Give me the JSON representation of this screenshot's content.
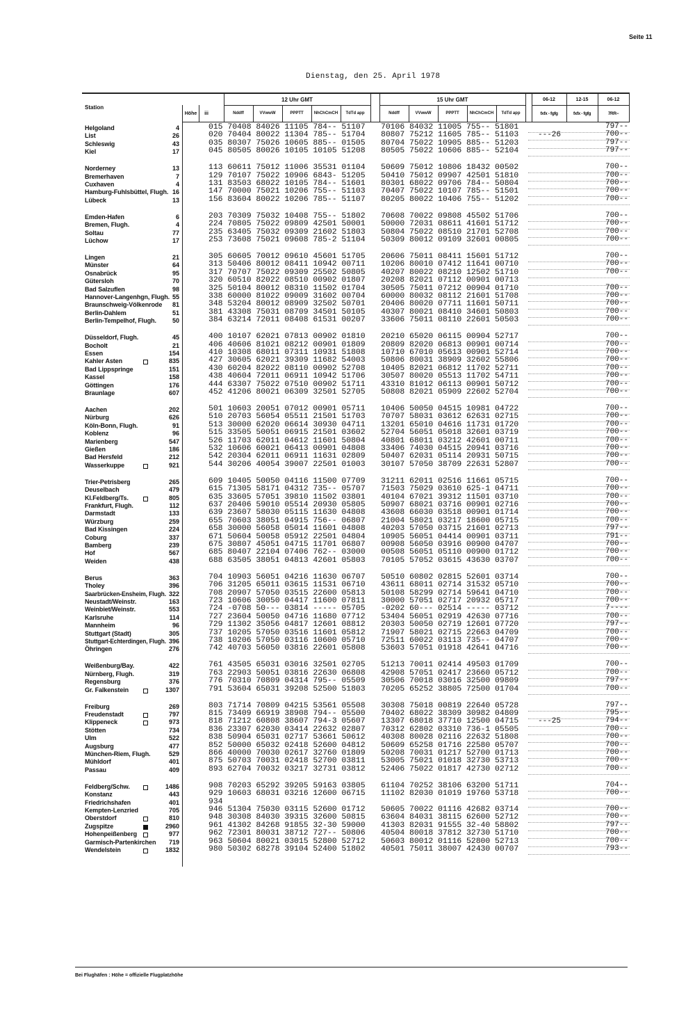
{
  "page_label": "Seite 11",
  "date_line": "Dienstag, den 25. April 1978",
  "header": {
    "station": "Station",
    "hoehe": "Höhe",
    "iii": "iii",
    "group_12": "12 Uhr GMT",
    "group_15": "15 Uhr GMT",
    "cols": [
      "Nddff",
      "VVwwW",
      "PPPTT",
      "NhChCmCH",
      "TdTd app"
    ],
    "right_top": [
      "06-12",
      "12-15",
      "06-12"
    ],
    "right_sub": [
      "fxfx - fgfg",
      "fxfx - fgfg",
      "7RR--"
    ]
  },
  "groups": [
    [
      [
        "Helgoland",
        "4",
        "",
        "015",
        "70408 84026 11105 784-- 51107",
        "70106 84032 11005 755-- 51801",
        "",
        "",
        "797--"
      ],
      [
        "List",
        "26",
        "",
        "020",
        "70404 80022 11304 785-- 51704",
        "80807 75212 11605 785-- 51103",
        "---26",
        "",
        "700--"
      ],
      [
        "Schleswig",
        "43",
        "",
        "035",
        "80307 75026 10605 885-- 01505",
        "80704 75022 10905 885-- 51203",
        "",
        "",
        "797--"
      ],
      [
        "Kiel",
        "17",
        "",
        "045",
        "80505 80026 10105 10105 51208",
        "80505 75022 10606 885-- 52104",
        "",
        "",
        "797--"
      ]
    ],
    [
      [
        "Norderney",
        "13",
        "",
        "113",
        "60611 75012 11006 35531 01104",
        "50609 75012 10806 18432 00502",
        "",
        "",
        "700--"
      ],
      [
        "Bremerhaven",
        "7",
        "",
        "129",
        "70107 75022 10906 6843- 51205",
        "50410 75012 09907 42501 51810",
        "",
        "",
        "700--"
      ],
      [
        "Cuxhaven",
        "4",
        "",
        "131",
        "83503 68022 10105 784-- 51601",
        "80301 68022 09706 784-- 50804",
        "",
        "",
        "700--"
      ],
      [
        "Hamburg-Fuhlsbüttel, Flugh.",
        "16",
        "",
        "147",
        "70000 75021 10206 755-- 51103",
        "70407 75022 10107 785-- 51501",
        "",
        "",
        "700--"
      ],
      [
        "Lübeck",
        "13",
        "",
        "156",
        "83604 80022 10206 785-- 51107",
        "80205 80022 10406 755-- 51202",
        "",
        "",
        "700--"
      ]
    ],
    [
      [
        "Emden-Hafen",
        "6",
        "",
        "203",
        "70309 75032 10408 755-- 51802",
        "70608 70022 09808 45502 51706",
        "",
        "",
        "700--"
      ],
      [
        "Bremen, Flugh.",
        "4",
        "",
        "224",
        "70805 75022 09809 42501 50001",
        "50000 72031 08611 41601 51712",
        "",
        "",
        "700--"
      ],
      [
        "Soltau",
        "77",
        "",
        "235",
        "63405 75032 09309 21602 51803",
        "50804 75022 08510 21701 52708",
        "",
        "",
        "700--"
      ],
      [
        "Lüchow",
        "17",
        "",
        "253",
        "73608 75021 09608 785-2 51104",
        "50309 80012 09109 32601 00805",
        "",
        "",
        "700--"
      ]
    ],
    [
      [
        "Lingen",
        "21",
        "",
        "305",
        "60605 70012 09610 45601 51705",
        "20606 75011 08411 15601 51712",
        "",
        "",
        "700--"
      ],
      [
        "Münster",
        "64",
        "",
        "313",
        "50406 80012 08411 10942 00711",
        "10206 80010 07412 11641 00710",
        "",
        "",
        "700--"
      ],
      [
        "Osnabrück",
        "95",
        "",
        "317",
        "70707 75022 09309 25502 50805",
        "40207 80022 08210 12502 51710",
        "",
        "",
        "700--"
      ],
      [
        "Gütersloh",
        "70",
        "",
        "320",
        "60510 82022 08510 00902 01807",
        "20208 82021 07112 00901 00713",
        "",
        "",
        ""
      ],
      [
        "Bad Salzuflen",
        "98",
        "",
        "325",
        "50104 80012 08310 11502 01704",
        "30505 75011 07212 00904 01710",
        "",
        "",
        "700--"
      ],
      [
        "Hannover-Langenhgn, Flugh.",
        "55",
        "",
        "338",
        "60000 81022 09009 31602 00704",
        "60000 80032 08112 21601 51708",
        "",
        "",
        "700--"
      ],
      [
        "Braunschweig-Völkenrode",
        "81",
        "",
        "348",
        "53204 80012 08909 32502 50701",
        "20406 80020 07711 11601 50711",
        "",
        "",
        "700--"
      ],
      [
        "Berlin-Dahlem",
        "51",
        "",
        "381",
        "43308 75031 08709 34501 50105",
        "40307 80021 08410 34601 50803",
        "",
        "",
        "700--"
      ],
      [
        "Berlin-Tempelhof, Flugh.",
        "50",
        "",
        "384",
        "63214 72011 08408 61531 00207",
        "33606 75011 08110 22601 50503",
        "",
        "",
        "700--"
      ]
    ],
    [
      [
        "Düsseldorf, Flugh.",
        "45",
        "",
        "400",
        "10107 62021 07813 00902 01810",
        "20210 65020 06115 00904 52717",
        "",
        "",
        "700--"
      ],
      [
        "Bocholt",
        "21",
        "",
        "406",
        "40606 81021 08212 00901 01809",
        "20809 82020 06813 00901 00714",
        "",
        "",
        "700--"
      ],
      [
        "Essen",
        "154",
        "",
        "410",
        "10308 68011 07311 10931 51808",
        "10710 67010 05613 00901 52714",
        "",
        "",
        "700--"
      ],
      [
        "Kahler Asten",
        "835",
        "open",
        "427",
        "30605 62021 39309 11682 54003",
        "50806 80031 38909 32602 55806",
        "",
        "",
        "700--"
      ],
      [
        "Bad Lippspringe",
        "151",
        "",
        "430",
        "60204 82022 08110 00902 52708",
        "10405 82021 06812 11702 52711",
        "",
        "",
        "700--"
      ],
      [
        "Kassel",
        "158",
        "",
        "438",
        "40604 72011 06911 10942 51706",
        "30507 80020 05513 11702 54711",
        "",
        "",
        "700--"
      ],
      [
        "Göttingen",
        "176",
        "",
        "444",
        "63307 75022 07510 00902 51711",
        "43310 81012 06113 00901 50712",
        "",
        "",
        "700--"
      ],
      [
        "Braunlage",
        "607",
        "",
        "452",
        "41206 80021 06309 32501 52705",
        "50808 82021 05909 22602 52704",
        "",
        "",
        "700--"
      ]
    ],
    [
      [
        "Aachen",
        "202",
        "",
        "501",
        "10603 20051 07012 00901 05711",
        "10406 50050 04515 10981 04722",
        "",
        "",
        "700--"
      ],
      [
        "Nürburg",
        "626",
        "",
        "510",
        "20703 56054 05511 21501 51703",
        "70707 58031 03612 62631 02715",
        "",
        "",
        "700--"
      ],
      [
        "Köln-Bonn, Flugh.",
        "91",
        "",
        "513",
        "30000 62020 06614 30930 04711",
        "13201 65010 04616 11731 01720",
        "",
        "",
        "700--"
      ],
      [
        "Koblenz",
        "96",
        "",
        "515",
        "33505 50051 06915 21501 03602",
        "52704 56051 05018 32601 03719",
        "",
        "",
        "700--"
      ],
      [
        "Marienberg",
        "547",
        "",
        "526",
        "11703 62011 04612 11601 50804",
        "40801 68011 03212 42601 00711",
        "",
        "",
        "700--"
      ],
      [
        "Gießen",
        "186",
        "",
        "532",
        "10606 60021 06413 00901 04808",
        "33406 74030 04515 20941 03716",
        "",
        "",
        "700--"
      ],
      [
        "Bad Hersfeld",
        "212",
        "",
        "542",
        "20304 62011 06911 11631 02809",
        "50407 62031 05114 20931 50715",
        "",
        "",
        "700--"
      ],
      [
        "Wasserkuppe",
        "921",
        "open",
        "544",
        "30206 40054 39007 22501 01003",
        "30107 57050 38709 22631 52807",
        "",
        "",
        "700--"
      ]
    ],
    [
      [
        "Trier-Petrisberg",
        "265",
        "",
        "609",
        "10405 50050 04116 11500 07709",
        "31211 62011 02516 11661 05715",
        "",
        "",
        "700--"
      ],
      [
        "Deuselbach",
        "479",
        "",
        "615",
        "71305 58171 04312 735-- 05707",
        "71503 75029 03610 625-1 04711",
        "",
        "",
        "700--"
      ],
      [
        "Kl.Feldberg/Ts.",
        "805",
        "open",
        "635",
        "33605 57051 39810 11502 03801",
        "40104 67021 39312 11501 03710",
        "",
        "",
        "700--"
      ],
      [
        "Frankfurt, Flugh.",
        "112",
        "",
        "637",
        "20406 59010 05514 20930 05805",
        "50907 68021 03716 00901 02716",
        "",
        "",
        "700--"
      ],
      [
        "Darmstadt",
        "133",
        "",
        "639",
        "23607 58030 05115 11630 04808",
        "43608 66030 03518 00901 01714",
        "",
        "",
        "700--"
      ],
      [
        "Würzburg",
        "259",
        "",
        "655",
        "70603 38051 04915 756-- 06807",
        "21004 58021 03217 18600 05715",
        "",
        "",
        "700--"
      ],
      [
        "Bad Kissingen",
        "224",
        "",
        "658",
        "30000 56058 05014 11601 04808",
        "40203 57050 03715 21601 02713",
        "",
        "",
        "797--"
      ],
      [
        "Coburg",
        "337",
        "",
        "671",
        "50604 50058 05912 22501 04804",
        "10905 56051 04414 00901 03711",
        "",
        "",
        "791--"
      ],
      [
        "Bamberg",
        "239",
        "",
        "675",
        "30807 45051 04715 11701 06807",
        "00908 56050 03916 00900 04707",
        "",
        "",
        "700--"
      ],
      [
        "Hof",
        "567",
        "",
        "685",
        "80407 22104 07406 762-- 03000",
        "00508 56051 05110 00900 01712",
        "",
        "",
        "700--"
      ],
      [
        "Weiden",
        "438",
        "",
        "688",
        "63505 38051 04813 42601 05803",
        "70105 57052 03615 43630 03707",
        "",
        "",
        "700--"
      ]
    ],
    [
      [
        "Berus",
        "363",
        "",
        "704",
        "10903 56051 04216 11630 06707",
        "50510 60802 02815 52601 03714",
        "",
        "",
        "700--"
      ],
      [
        "Tholey",
        "396",
        "",
        "706",
        "31205 65011 03615 11531 06710",
        "43611 68011 02714 31532 05710",
        "",
        "",
        "700--"
      ],
      [
        "Saarbrücken-Ensheim, Flugh.",
        "322",
        "",
        "708",
        "20907 57050 03515 22600 05813",
        "50108 58299 02714 59641 04710",
        "",
        "",
        "700--"
      ],
      [
        "Neustadt/Weinstr.",
        "163",
        "",
        "723",
        "10606 30050 04417 11600 07811",
        "30000 57051 02717 20932 05717",
        "",
        "",
        "700--"
      ],
      [
        "Weinbiet/Weinstr.",
        "553",
        "",
        "724",
        "-0708 50--- 03814 ----- 05705",
        "-0202 60--- 02514 ----- 03712",
        "",
        "",
        "7----"
      ],
      [
        "Karlsruhe",
        "114",
        "",
        "727",
        "23604 50050 04716 11680 07712",
        "53404 56051 02919 42630 07716",
        "",
        "",
        "700--"
      ],
      [
        "Mannheim",
        "96",
        "",
        "729",
        "11302 35056 04817 12601 08812",
        "20303 50050 02719 12601 07720",
        "",
        "",
        "797--"
      ],
      [
        "Stuttgart (Stadt)",
        "305",
        "",
        "737",
        "10205 57050 03516 11601 05812",
        "71907 58021 02715 22663 04709",
        "",
        "",
        "700--"
      ],
      [
        "Stuttgart-Echterdingen, Flugh.",
        "396",
        "",
        "738",
        "10206 57050 03116 10600 05710",
        "72511 60022 03113 735-- 04707",
        "",
        "",
        "700--"
      ],
      [
        "Öhringen",
        "276",
        "",
        "742",
        "40703 56050 03816 22601 05808",
        "53603 57051 01918 42641 04716",
        "",
        "",
        "700--"
      ]
    ],
    [
      [
        "Weißenburg/Bay.",
        "422",
        "",
        "761",
        "43505 65031 03016 32501 02705",
        "51213 70011 02414 49503 01709",
        "",
        "",
        "700--"
      ],
      [
        "Nürnberg, Flugh.",
        "319",
        "",
        "763",
        "22903 50051 03816 22630 06808",
        "42908 57051 02417 23660 05712",
        "",
        "",
        "700--"
      ],
      [
        "Regensburg",
        "376",
        "",
        "776",
        "70310 70809 04314 795-- 05509",
        "30506 70018 03016 32500 09809",
        "",
        "",
        "797--"
      ],
      [
        "Gr. Falkenstein",
        "1307",
        "open",
        "791",
        "53604 65031 39208 52500 51803",
        "70205 65252 38805 72500 01704",
        "",
        "",
        "700--"
      ]
    ],
    [
      [
        "Freiburg",
        "269",
        "",
        "803",
        "71714 70809 04215 53561 05508",
        "30308 75018 00819 22640 05728",
        "",
        "",
        "797--"
      ],
      [
        "Freudenstadt",
        "797",
        "open",
        "815",
        "73409 66919 38908 794-- 05500",
        "70402 68022 38309 30982 04809",
        "",
        "",
        "795--"
      ],
      [
        "Klippeneck",
        "973",
        "open",
        "818",
        "71212 60808 38607 794-3 05607",
        "13307 68018 37710 12500 04715",
        "---25",
        "",
        "794--"
      ],
      [
        "Stötten",
        "734",
        "",
        "836",
        "23307 62030 03414 22632 02807",
        "70312 62802 03310 736-1 05505",
        "",
        "",
        "700--"
      ],
      [
        "Ulm",
        "522",
        "",
        "838",
        "50904 65031 02717 53661 50612",
        "40308 80028 02116 22632 51808",
        "",
        "",
        "700--"
      ],
      [
        "Augsburg",
        "477",
        "",
        "852",
        "50000 65032 02418 52600 04812",
        "50609 65258 01716 22580 05707",
        "",
        "",
        "700--"
      ],
      [
        "München-Riem, Flugh.",
        "529",
        "",
        "866",
        "40000 70030 02617 32760 01809",
        "50208 70031 01217 52700 01713",
        "",
        "",
        "700--"
      ],
      [
        "Mühldorf",
        "401",
        "",
        "875",
        "50703 70031 02418 52700 03811",
        "53005 75021 01018 32730 53713",
        "",
        "",
        "700--"
      ],
      [
        "Passau",
        "409",
        "",
        "893",
        "62704 70032 03217 32731 03812",
        "52406 75022 01817 42730 02712",
        "",
        "",
        "700--"
      ]
    ],
    [
      [
        "Feldberg/Schw.",
        "1486",
        "open",
        "908",
        "70203 65292 39205 59163 03805",
        "61104 70252 38106 63200 51711",
        "",
        "",
        "704--"
      ],
      [
        "Konstanz",
        "443",
        "",
        "929",
        "10603 68031 03216 12600 06715",
        "11102 82030 01019 19760 53718",
        "",
        "",
        "700--"
      ],
      [
        "Friedrichshafen",
        "401",
        "",
        "934",
        "",
        "",
        "",
        "",
        ""
      ],
      [
        "Kempten-Lenzried",
        "705",
        "",
        "946",
        "51304 75030 03115 52600 01712",
        "50605 70022 01116 42682 03714",
        "",
        "",
        "700--"
      ],
      [
        "Oberstdorf",
        "810",
        "open",
        "948",
        "30308 84030 39315 32600 50815",
        "63604 84031 38115 62600 52712",
        "",
        "",
        "700--"
      ],
      [
        "Zugspitze",
        "2960",
        "filled",
        "961",
        "41302 84268 91855 32-30 59000",
        "41303 82031 91555 32-40 58802",
        "",
        "",
        "797--"
      ],
      [
        "Hohenpeißenberg",
        "977",
        "open",
        "962",
        "72301 80031 38712 727-- 50806",
        "40504 80018 37812 32730 51710",
        "",
        "",
        "700--"
      ],
      [
        "Garmisch-Partenkirchen",
        "719",
        "",
        "963",
        "50604 80021 03015 52800 52712",
        "50603 80012 01116 52800 52713",
        "",
        "",
        "700--"
      ],
      [
        "Wendelstein",
        "1832",
        "open",
        "980",
        "50302 68278 39104 52400 51802",
        "40501 75011 38007 42430 00707",
        "",
        "",
        "793--"
      ]
    ]
  ],
  "footer": "Bei Flughäfen : Höhe = offizielle Flugplatzhöhe"
}
